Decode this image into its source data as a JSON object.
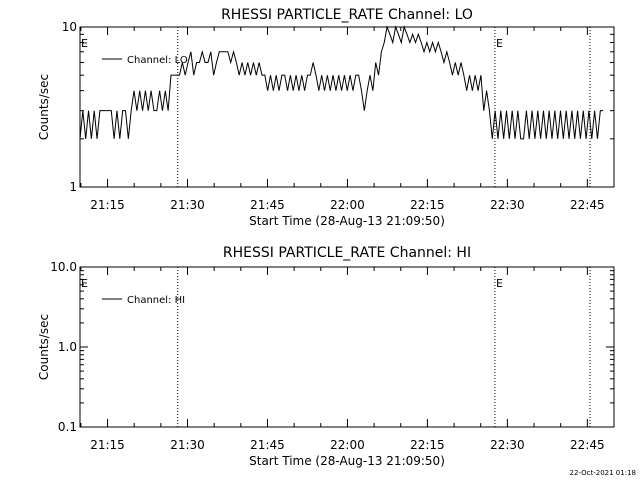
{
  "footer": {
    "timestamp": "22-Oct-2021 01:18"
  },
  "chart_data": [
    {
      "type": "line",
      "title": "RHESSI PARTICLE_RATE Channel: LO",
      "xlabel": "Start Time (28-Aug-13 21:09:50)",
      "ylabel": "Counts/sec",
      "yscale": "log",
      "xlim": [
        "21:09:50",
        "22:50:00"
      ],
      "ylim": [
        1,
        10
      ],
      "x_ticks": [
        "21:15",
        "21:30",
        "21:45",
        "22:00",
        "22:15",
        "22:30",
        "22:45"
      ],
      "y_ticks": [
        "1",
        "10"
      ],
      "legend": {
        "position": "top-left",
        "entries": [
          "Channel: LO"
        ]
      },
      "annotations": [
        {
          "text": "E",
          "x": "21:09:50"
        },
        {
          "text": "E",
          "x": "22:27:40"
        }
      ],
      "vlines": [
        "21:28:10",
        "22:27:40",
        "22:45:30"
      ],
      "series": [
        {
          "name": "Channel: LO",
          "color": "#000000",
          "x_start": "21:09:50",
          "step_seconds": 32,
          "values": [
            2,
            3,
            2,
            3,
            2,
            3,
            2,
            3,
            3,
            3,
            3,
            3,
            2,
            3,
            2,
            3,
            3,
            2,
            3,
            4,
            3,
            4,
            3,
            4,
            3,
            4,
            3,
            3,
            4,
            3,
            4,
            3,
            5,
            5,
            5,
            5,
            6,
            5,
            6,
            7,
            5,
            6,
            6,
            7,
            6,
            6,
            7,
            5,
            6,
            7,
            7,
            7,
            7,
            6,
            7,
            6,
            5,
            6,
            5,
            6,
            5,
            6,
            5,
            6,
            5,
            5,
            4,
            5,
            4,
            5,
            4,
            5,
            5,
            4,
            5,
            4,
            5,
            4,
            5,
            4,
            5,
            5,
            6,
            5,
            4,
            5,
            4,
            5,
            4,
            5,
            4,
            5,
            4,
            5,
            4,
            5,
            4,
            5,
            5,
            4,
            3,
            4,
            5,
            4,
            6,
            5,
            7,
            8,
            10,
            9,
            8,
            10,
            9,
            8,
            10,
            9,
            8,
            9,
            8,
            9,
            8,
            7,
            8,
            7,
            8,
            7,
            8,
            7,
            6,
            7,
            6,
            5,
            6,
            5,
            6,
            5,
            4,
            5,
            4,
            5,
            4,
            5,
            3,
            4,
            3,
            2,
            3,
            2,
            3,
            2,
            3,
            2,
            3,
            2,
            3,
            2,
            2,
            3,
            2,
            3,
            2,
            3,
            2,
            3,
            2,
            3,
            2,
            3,
            2,
            3,
            2,
            3,
            2,
            3,
            2,
            3,
            2,
            3,
            2,
            3,
            2,
            3,
            2,
            3,
            3
          ]
        }
      ]
    },
    {
      "type": "line",
      "title": "RHESSI PARTICLE_RATE Channel: HI",
      "xlabel": "Start Time (28-Aug-13 21:09:50)",
      "ylabel": "Counts/sec",
      "yscale": "log",
      "xlim": [
        "21:09:50",
        "22:50:00"
      ],
      "ylim": [
        0.1,
        10.0
      ],
      "x_ticks": [
        "21:15",
        "21:30",
        "21:45",
        "22:00",
        "22:15",
        "22:30",
        "22:45"
      ],
      "y_ticks": [
        "0.1",
        "1.0",
        "10.0"
      ],
      "legend": {
        "position": "top-left",
        "entries": [
          "Channel: HI"
        ]
      },
      "annotations": [
        {
          "text": "E",
          "x": "21:09:50"
        },
        {
          "text": "E",
          "x": "22:27:40"
        }
      ],
      "vlines": [
        "21:28:10",
        "22:27:40",
        "22:45:30"
      ],
      "series": [
        {
          "name": "Channel: HI",
          "color": "#000000",
          "values": []
        }
      ]
    }
  ]
}
